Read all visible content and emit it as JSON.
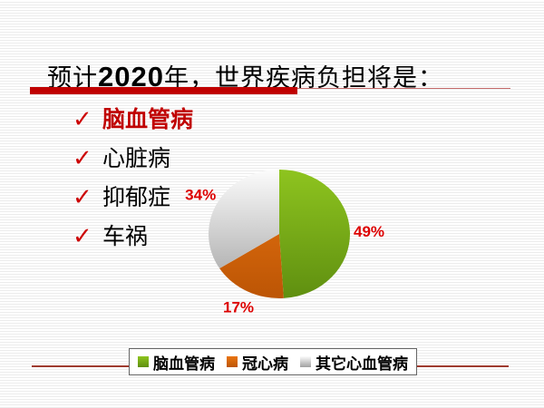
{
  "slide": {
    "title": {
      "prefix": "预计",
      "year": "2020",
      "suffix": "年，世界疾病负担将是："
    },
    "bullets": [
      {
        "label": "脑血管病",
        "emphasis": true
      },
      {
        "label": "心脏病",
        "emphasis": false
      },
      {
        "label": "抑郁症",
        "emphasis": false
      },
      {
        "label": "车祸",
        "emphasis": false
      }
    ]
  },
  "icons": {
    "check": "✓"
  },
  "chart_data": {
    "type": "pie",
    "slices": [
      {
        "label": "脑血管病",
        "value": 49,
        "data_label": "49%",
        "color_top": "#8ec41f",
        "color_bottom": "#5f8f10"
      },
      {
        "label": "冠心病",
        "value": 17,
        "data_label": "17%",
        "color_top": "#ea7511",
        "color_bottom": "#bc5505"
      },
      {
        "label": "其它心血管病",
        "value": 34,
        "data_label": "34%",
        "color_top": "#fcfcfc",
        "color_bottom": "#a0a0a0"
      }
    ],
    "start_angle_deg": 0,
    "direction": "clockwise",
    "legend_position": "bottom",
    "data_label_color": "#dd0000"
  },
  "colors": {
    "title_bar_red": "#c00000",
    "title_thin_line": "#c46a6a",
    "footer_rule": "#9e3a2e",
    "checkmark_red": "#cc0000",
    "emphasis_text_red": "#c00000",
    "legend_border": "#666666"
  }
}
